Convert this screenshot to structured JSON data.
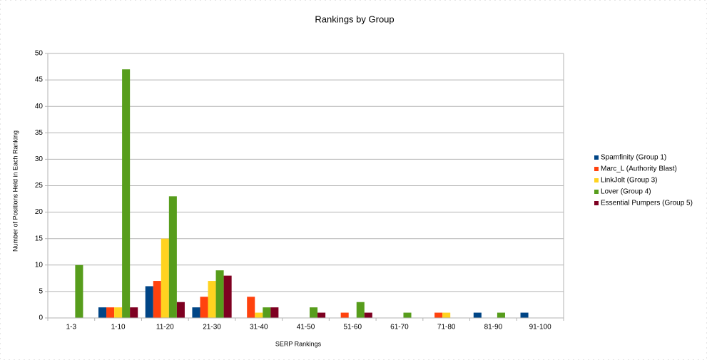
{
  "chart_data": {
    "type": "bar",
    "title": "Rankings by Group",
    "x_label": "SERP Rankings",
    "y_label": "Number of Positions Held in Each Ranking",
    "categories": [
      "1-3",
      "1-10",
      "11-20",
      "21-30",
      "31-40",
      "41-50",
      "51-60",
      "61-70",
      "71-80",
      "81-90",
      "91-100"
    ],
    "series": [
      {
        "name": "Spamfinity (Group 1)",
        "color": "#004586",
        "values": [
          0,
          2,
          6,
          2,
          0,
          0,
          0,
          0,
          0,
          1,
          1
        ]
      },
      {
        "name": "Marc_L (Authority Blast)",
        "color": "#ff420e",
        "values": [
          0,
          2,
          7,
          4,
          4,
          0,
          1,
          0,
          1,
          0,
          0
        ]
      },
      {
        "name": "LinkJolt (Group 3)",
        "color": "#ffd320",
        "values": [
          0,
          2,
          15,
          7,
          1,
          0,
          0,
          0,
          1,
          0,
          0
        ]
      },
      {
        "name": "Lover (Group 4)",
        "color": "#579d1c",
        "values": [
          10,
          47,
          23,
          9,
          2,
          2,
          3,
          1,
          0,
          1,
          0
        ]
      },
      {
        "name": "Essential Pumpers (Group 5)",
        "color": "#7e0021",
        "values": [
          0,
          2,
          3,
          8,
          2,
          1,
          1,
          0,
          0,
          0,
          0
        ]
      }
    ],
    "ylim": [
      0,
      50
    ],
    "yticks": [
      0,
      5,
      10,
      15,
      20,
      25,
      30,
      35,
      40,
      45,
      50
    ],
    "grid": true,
    "legend": "right"
  }
}
